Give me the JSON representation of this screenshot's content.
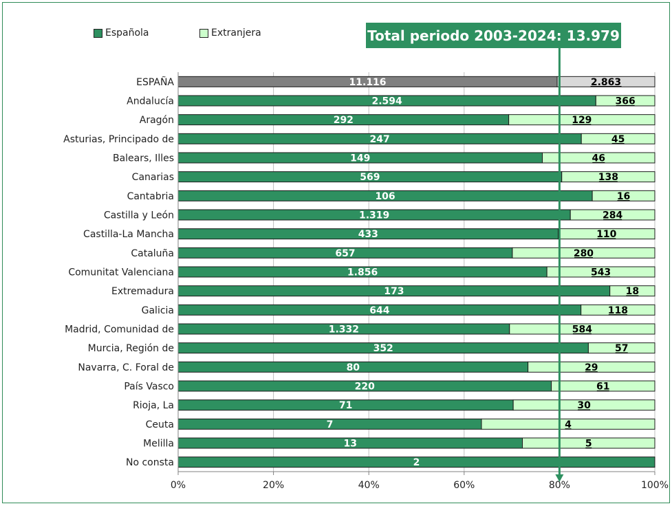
{
  "legend": {
    "espanola_label": "Española",
    "extranjera_label": "Extranjera"
  },
  "total_label": "Total periodo 2003-2024: 13.979",
  "colors": {
    "espanola": "#2e9060",
    "extranjera": "#ccffcc",
    "espana_espanola": "#808080",
    "espana_extranjera": "#d9d9d9",
    "marker": "#2e9060"
  },
  "chart_data": {
    "type": "bar",
    "orientation": "horizontal",
    "stacked": "percent",
    "categories": [
      "ESPAÑA",
      "Andalucía",
      "Aragón",
      "Asturias, Principado de",
      "Balears, Illes",
      "Canarias",
      "Cantabria",
      "Castilla y León",
      "Castilla-La Mancha",
      "Cataluña",
      "Comunitat Valenciana",
      "Extremadura",
      "Galicia",
      "Madrid, Comunidad de",
      "Murcia, Región de",
      "Navarra, C. Foral de",
      "País Vasco",
      "Rioja, La",
      "Ceuta",
      "Melilla",
      "No consta"
    ],
    "series": [
      {
        "name": "Española",
        "values": [
          11116,
          2594,
          292,
          247,
          149,
          569,
          106,
          1319,
          433,
          657,
          1856,
          173,
          644,
          1332,
          352,
          80,
          220,
          71,
          7,
          13,
          2
        ],
        "labels": [
          "11.116",
          "2.594",
          "292",
          "247",
          "149",
          "569",
          "106",
          "1.319",
          "433",
          "657",
          "1.856",
          "173",
          "644",
          "1.332",
          "352",
          "80",
          "220",
          "71",
          "7",
          "13",
          "2"
        ]
      },
      {
        "name": "Extranjera",
        "values": [
          2863,
          366,
          129,
          45,
          46,
          138,
          16,
          284,
          110,
          280,
          543,
          18,
          118,
          584,
          57,
          29,
          61,
          30,
          4,
          5,
          0
        ],
        "labels": [
          "2.863",
          "366",
          "129",
          "45",
          "46",
          "138",
          "16",
          "284",
          "110",
          "280",
          "543",
          "18",
          "118",
          "584",
          "57",
          "29",
          "61",
          "30",
          "4",
          "5",
          ""
        ]
      }
    ],
    "xticks": [
      "0%",
      "20%",
      "40%",
      "60%",
      "80%",
      "100%"
    ],
    "xlim": [
      0,
      100
    ],
    "marker_value": 80,
    "grid": true,
    "legend_position": "top-left"
  }
}
